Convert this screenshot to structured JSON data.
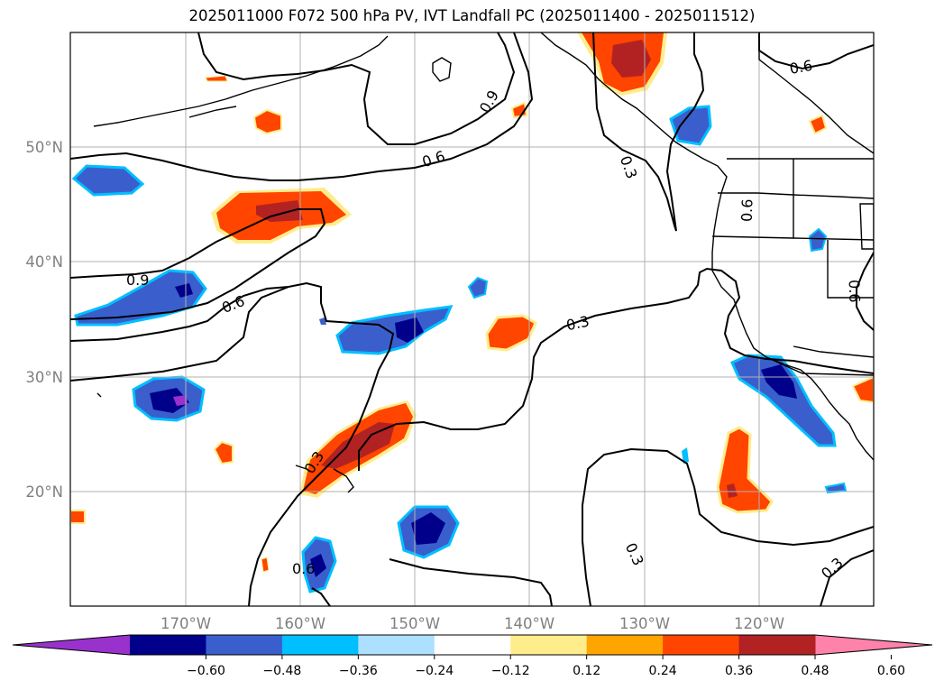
{
  "title": "2025011000 F072 500 hPa PV, IVT Landfall PC (2025011400 - 2025011512)",
  "axes": {
    "lat_labels": [
      "50°N",
      "40°N",
      "30°N",
      "20°N"
    ],
    "lon_labels": [
      "170°W",
      "160°W",
      "150°W",
      "140°W",
      "130°W",
      "120°W"
    ]
  },
  "colorbar": {
    "colors": [
      "#9932CC",
      "#00008B",
      "#3A5FCD",
      "#00BFFF",
      "#ADDFFF",
      "#FFFFFF",
      "#FFEC8B",
      "#FFA500",
      "#FF4500",
      "#B22222",
      "#FF82AB"
    ],
    "tick_labels": [
      "−0.60",
      "−0.48",
      "−0.36",
      "−0.24",
      "−0.12",
      "0.12",
      "0.24",
      "0.36",
      "0.48",
      "0.60"
    ],
    "extend": "both"
  },
  "contour_labels": [
    {
      "text": "0.9"
    },
    {
      "text": "0.6"
    },
    {
      "text": "0.3"
    },
    {
      "text": "0.6"
    },
    {
      "text": "0.9"
    },
    {
      "text": "0.6"
    },
    {
      "text": "0.3"
    },
    {
      "text": "0.6"
    },
    {
      "text": "0.6"
    },
    {
      "text": "0.3"
    },
    {
      "text": "0.3"
    },
    {
      "text": "0.3"
    },
    {
      "text": "0.6"
    }
  ],
  "colors": {
    "gridline": "#b0b0b0",
    "contour": "#000000",
    "coast": "#000000"
  }
}
